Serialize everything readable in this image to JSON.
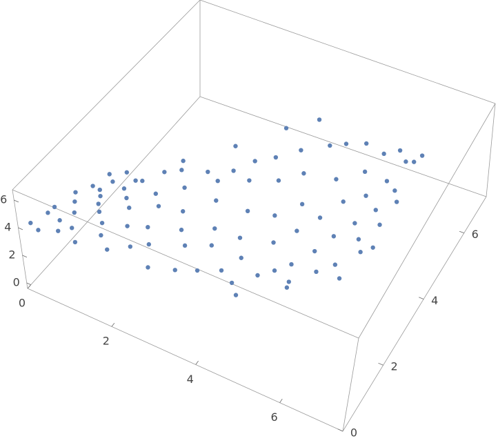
{
  "chart_data": {
    "type": "scatter3d",
    "color": "#5e81b5",
    "xlim": [
      0,
      7.5
    ],
    "ylim": [
      0,
      7.1
    ],
    "zlim": [
      -0.4,
      6.75
    ],
    "xticks": [
      0,
      2,
      4,
      6
    ],
    "yticks": [
      0,
      2,
      4,
      6
    ],
    "zticks": [
      0,
      2,
      4,
      6
    ],
    "x": [
      0.1,
      0.1,
      0.1,
      0.2,
      0.2,
      0.4,
      0.4,
      0.5,
      0.5,
      0.6,
      0.7,
      0.7,
      0.8,
      0.9,
      0.9,
      1.0,
      1.1,
      1.1,
      1.2,
      1.3,
      1.4,
      1.4,
      1.5,
      1.6,
      1.6,
      1.7,
      1.8,
      1.9,
      1.9,
      2.0,
      2.1,
      2.1,
      2.2,
      2.3,
      2.4,
      2.4,
      2.5,
      2.6,
      2.7,
      2.7,
      2.8,
      2.9,
      3.0,
      3.0,
      3.1,
      3.2,
      3.2,
      3.3,
      3.4,
      3.5,
      3.5,
      3.6,
      3.7,
      3.8,
      3.8,
      3.9,
      4.0,
      4.1,
      4.1,
      4.2,
      4.3,
      4.4,
      4.4,
      4.5,
      4.6,
      4.7,
      4.7,
      4.8,
      4.9,
      5.0,
      5.0,
      5.1,
      5.2,
      5.3,
      5.3,
      5.4,
      5.5,
      5.6,
      5.6,
      5.7,
      5.8,
      5.8,
      5.9,
      6.0,
      6.0,
      6.1,
      6.2,
      6.2,
      6.2,
      0.3,
      1.0,
      2.2,
      3.0,
      4.3,
      5.0,
      5.9,
      1.5,
      3.6,
      0.6,
      6.1
    ],
    "y": [
      0.3,
      1.2,
      2.0,
      2.5,
      0.8,
      0.1,
      1.5,
      2.3,
      2.8,
      0.6,
      1.0,
      2.0,
      0.2,
      2.6,
      1.6,
      0.4,
      3.0,
      1.3,
      2.2,
      0.0,
      3.4,
      0.9,
      1.8,
      2.7,
      0.5,
      3.6,
      1.2,
      2.3,
      0.2,
      3.2,
      1.5,
      4.0,
      0.6,
      2.6,
      3.9,
      1.0,
      4.4,
      2.0,
      0.4,
      3.3,
      4.8,
      1.6,
      2.7,
      4.2,
      0.8,
      5.0,
      2.2,
      3.6,
      1.2,
      4.6,
      2.9,
      5.4,
      1.7,
      3.9,
      2.4,
      5.0,
      1.6,
      3.3,
      5.8,
      4.4,
      2.2,
      6.0,
      3.8,
      2.6,
      5.2,
      4.3,
      3.0,
      6.2,
      2.5,
      4.8,
      3.5,
      5.6,
      4.0,
      6.1,
      3.0,
      5.1,
      4.4,
      6.3,
      3.3,
      5.5,
      4.0,
      4.8,
      6.0,
      3.7,
      5.3,
      4.4,
      6.2,
      3.9,
      5.0,
      3.0,
      2.9,
      5.0,
      5.8,
      1.2,
      2.2,
      2.9,
      4.0,
      6.2,
      3.2,
      6.0
    ],
    "z": [
      3.9,
      3.3,
      2.8,
      2.4,
      3.8,
      4.2,
      3.5,
      2.9,
      2.5,
      4.2,
      4.1,
      3.3,
      4.5,
      2.9,
      3.8,
      4.6,
      2.9,
      4.1,
      3.4,
      4.8,
      3.1,
      4.5,
      3.9,
      3.2,
      4.7,
      3.2,
      4.2,
      3.5,
      4.7,
      3.1,
      3.9,
      2.7,
      4.5,
      3.0,
      2.6,
      4.1,
      2.4,
      3.3,
      4.1,
      2.8,
      2.6,
      3.4,
      2.4,
      2.7,
      3.6,
      2.9,
      2.5,
      2.1,
      3.1,
      2.4,
      1.9,
      3.0,
      2.4,
      1.7,
      1.9,
      2.5,
      2.1,
      1.4,
      3.0,
      1.9,
      1.7,
      3.0,
      1.5,
      1.4,
      2.4,
      1.7,
      1.2,
      3.0,
      1.3,
      2.1,
      1.4,
      2.6,
      1.6,
      3.0,
      1.4,
      2.3,
      2.0,
      3.1,
      1.6,
      2.8,
      2.1,
      2.4,
      3.3,
      2.1,
      2.9,
      2.6,
      3.6,
      2.2,
      3.0,
      2.4,
      3.0,
      2.6,
      3.1,
      2.5,
      1.7,
      1.9,
      2.8,
      3.5,
      2.5,
      3.5
    ]
  }
}
